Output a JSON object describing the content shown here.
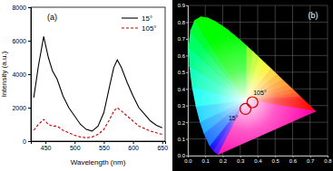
{
  "chart_data": [
    {
      "type": "line",
      "annotation": "(a)",
      "x_label": "Wavelength (nm)",
      "y_label": "Intensity (a.u.)",
      "x": [
        430,
        438,
        447,
        455,
        462,
        470,
        480,
        490,
        500,
        510,
        520,
        530,
        540,
        550,
        560,
        567,
        573,
        580,
        590,
        600,
        610,
        620,
        630,
        640,
        650
      ],
      "series": [
        {
          "name": "15°",
          "color": "#000000",
          "line_style": "solid",
          "values": [
            2600,
            4500,
            6250,
            5000,
            4200,
            3700,
            2700,
            2000,
            1500,
            1000,
            700,
            600,
            900,
            1700,
            3300,
            4400,
            4850,
            4400,
            3500,
            2700,
            2000,
            1600,
            1200,
            950,
            800
          ]
        },
        {
          "name": "105°",
          "color": "#cc0000",
          "line_style": "dashed",
          "values": [
            650,
            1000,
            1300,
            1000,
            900,
            900,
            650,
            500,
            350,
            250,
            200,
            250,
            400,
            700,
            1300,
            1800,
            2000,
            1800,
            1500,
            1200,
            900,
            750,
            600,
            500,
            400
          ]
        }
      ],
      "xlim": [
        425,
        655
      ],
      "ylim": [
        0,
        8000
      ],
      "xticks": [
        450,
        500,
        550,
        600,
        650
      ],
      "yticks": [
        0,
        2000,
        4000,
        6000,
        8000
      ],
      "legend": "upper right"
    },
    {
      "type": "scatter",
      "annotation": "(b)",
      "series": [
        {
          "name": "15°",
          "color": "#cc0000",
          "marker": "circle",
          "x": [
            0.33
          ],
          "values": [
            0.28
          ]
        },
        {
          "name": "105°",
          "color": "#cc0000",
          "marker": "circle",
          "x": [
            0.37
          ],
          "values": [
            0.32
          ]
        }
      ],
      "xlim": [
        0,
        0.8
      ],
      "ylim": [
        0,
        0.9
      ],
      "xticks": [
        {
          "value": 0,
          "label": "0.0"
        },
        {
          "value": 0.1,
          "label": "0.1"
        },
        {
          "value": 0.2,
          "label": "0.2"
        },
        {
          "value": 0.3,
          "label": "0.3"
        },
        {
          "value": 0.4,
          "label": "0.4"
        },
        {
          "value": 0.5,
          "label": "0.5"
        },
        {
          "value": 0.6,
          "label": "0.6"
        },
        {
          "value": 0.7,
          "label": "0.7"
        },
        {
          "value": 0.8,
          "label": "0.8"
        }
      ],
      "yticks": [
        {
          "value": 0,
          "label": "0.0"
        },
        {
          "value": 0.1,
          "label": "0.1"
        },
        {
          "value": 0.2,
          "label": "0.2"
        },
        {
          "value": 0.3,
          "label": "0.3"
        },
        {
          "value": 0.4,
          "label": "0.4"
        },
        {
          "value": 0.5,
          "label": "0.5"
        },
        {
          "value": 0.6,
          "label": "0.6"
        },
        {
          "value": 0.7,
          "label": "0.7"
        },
        {
          "value": 0.8,
          "label": "0.8"
        },
        {
          "value": 0.9,
          "label": "0.9"
        }
      ],
      "grid": true
    }
  ]
}
